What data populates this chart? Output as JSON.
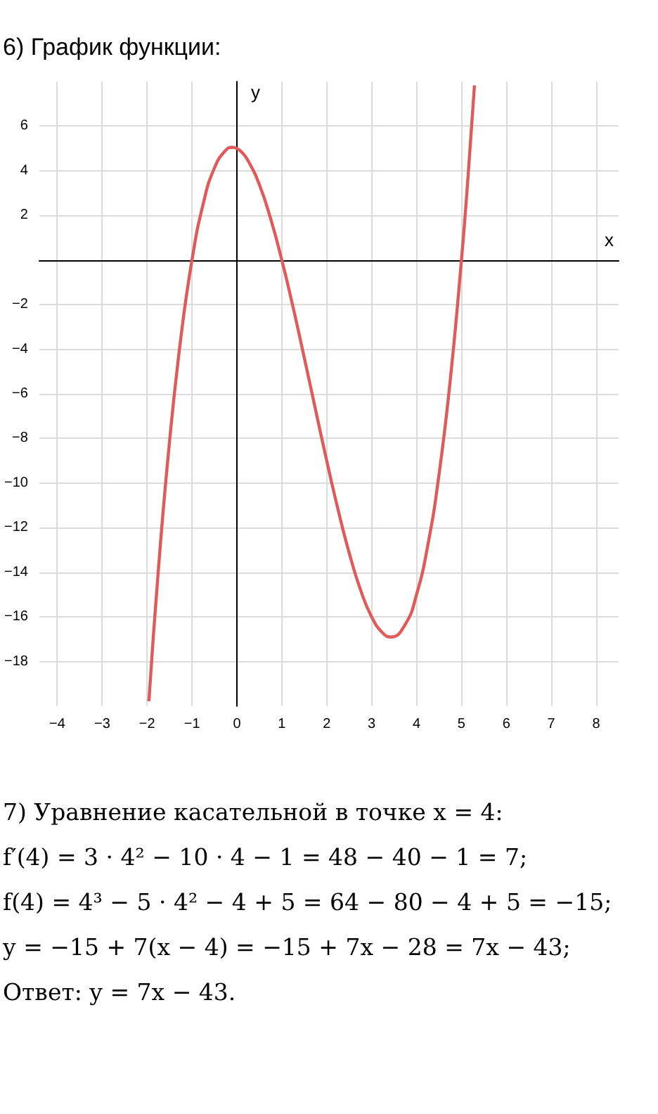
{
  "chart_data": {
    "type": "line",
    "title": "6) График функции:",
    "xlabel": "x",
    "ylabel": "y",
    "series": [
      {
        "color": "#e05a5a",
        "x": [
          -1.96,
          -1.75,
          -1.5,
          -1.25,
          -1,
          -0.75,
          -0.5,
          -0.25,
          -0.1,
          0,
          0.1,
          0.25,
          0.5,
          0.75,
          1,
          1.25,
          1.5,
          1.75,
          2,
          2.25,
          2.5,
          2.75,
          3,
          3.25,
          3.43,
          3.75,
          4,
          4.25,
          4.5,
          4.75,
          5,
          5.15,
          5.29
        ],
        "values": [
          -19.78,
          -13.92,
          -8.13,
          -3.52,
          0,
          2.52,
          4.13,
          4.92,
          5.05,
          5,
          4.85,
          4.45,
          3.38,
          1.86,
          0,
          -2.11,
          -4.38,
          -6.7,
          -9,
          -11.17,
          -13.13,
          -14.77,
          -16,
          -16.73,
          -16.9,
          -16.33,
          -15,
          -12.8,
          -9.63,
          -5.39,
          0,
          3.83,
          7.83
        ]
      }
    ],
    "xlim": [
      -4.4,
      8.5
    ],
    "ylim": [
      -20,
      8
    ],
    "xticks": [
      -4,
      -3,
      -2,
      -1,
      0,
      1,
      2,
      3,
      4,
      5,
      6,
      7,
      8
    ],
    "yticks": [
      -18,
      -16,
      -14,
      -12,
      -10,
      -8,
      -6,
      -4,
      -2,
      2,
      4,
      6
    ],
    "grid": true,
    "marker": "none",
    "line_style": "solid",
    "annotations": [
      "7) Уравнение касательной в точке x = 4:",
      "f′(4) = 3 · 4² − 10 · 4 − 1 = 48 − 40 − 1 = 7;",
      "f(4) = 4³ − 5 · 4² − 4 + 5 = 64 − 80 − 4 + 5 = −15;",
      "y = −15 + 7(x − 4) = −15 + 7x − 28 = 7x − 43;",
      "Ответ: y = 7x − 43."
    ]
  }
}
